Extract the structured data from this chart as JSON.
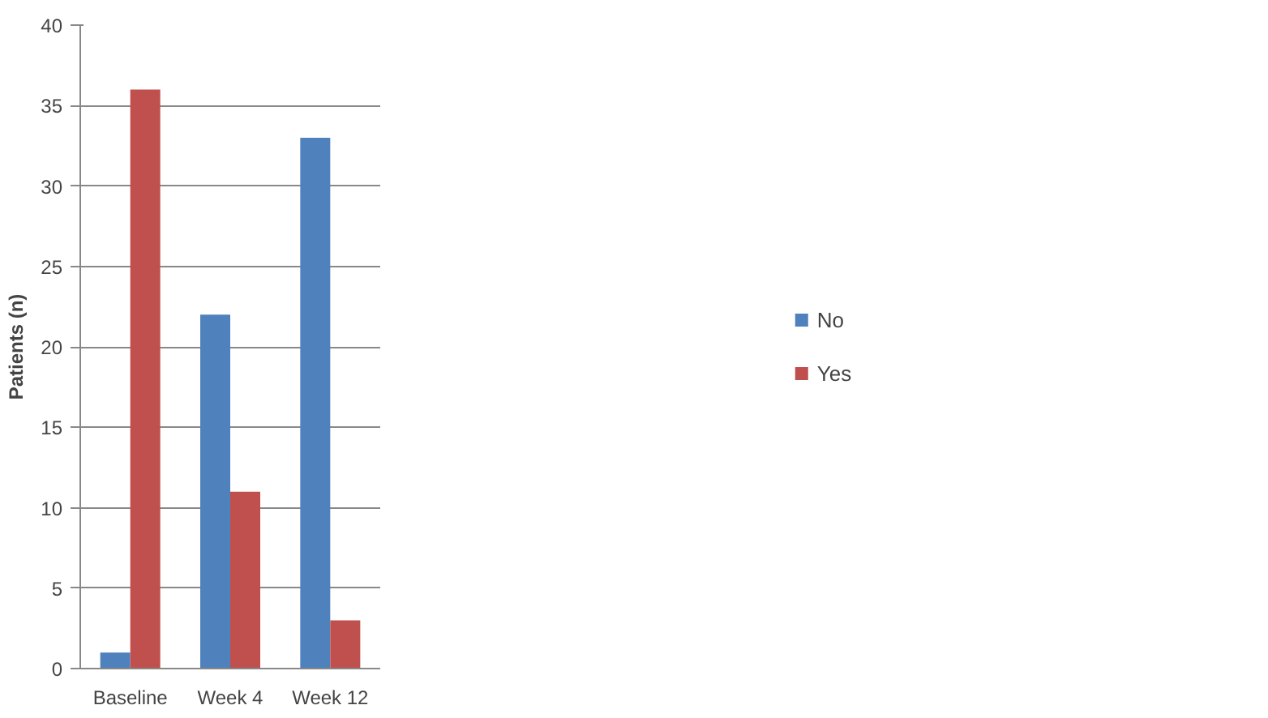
{
  "chart_data": {
    "type": "bar",
    "ylabel": "Patients (n)",
    "categories": [
      "Baseline",
      "Week 4",
      "Week 12"
    ],
    "series": [
      {
        "name": "No",
        "color": "#4f81bd",
        "values": [
          1,
          22,
          33
        ]
      },
      {
        "name": "Yes",
        "color": "#c0504d",
        "values": [
          36,
          11,
          3
        ]
      }
    ],
    "ylim": [
      0,
      40
    ],
    "yticks": [
      0,
      5,
      10,
      15,
      20,
      25,
      30,
      35,
      40
    ],
    "grid": "y",
    "legend": "right"
  }
}
